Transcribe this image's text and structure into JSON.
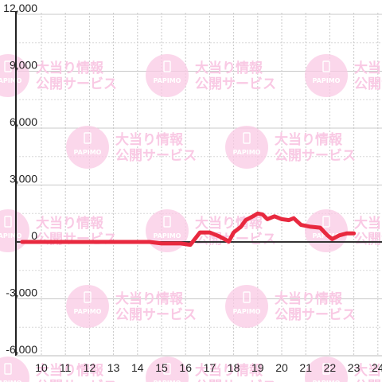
{
  "chart_data": {
    "type": "line",
    "title": "",
    "xlabel": "",
    "ylabel": "",
    "xlim": [
      9.2,
      24.5
    ],
    "ylim": [
      -6000,
      12000
    ],
    "x_ticks": [
      10,
      11,
      12,
      13,
      14,
      15,
      16,
      17,
      18,
      19,
      20,
      21,
      22,
      23,
      24
    ],
    "y_ticks": [
      {
        "value": 12000,
        "label": "12,000"
      },
      {
        "value": 9000,
        "label": "9,000"
      },
      {
        "value": 6000,
        "label": "6,000"
      },
      {
        "value": 3000,
        "label": "3,000"
      },
      {
        "value": 0,
        "label": "0"
      },
      {
        "value": -3000,
        "label": "-3,000"
      },
      {
        "value": -6000,
        "label": "-6,000"
      }
    ],
    "grid": true,
    "series": [
      {
        "color": "#e8293f",
        "points": [
          [
            9.2,
            0
          ],
          [
            14.5,
            0
          ],
          [
            15.0,
            -80
          ],
          [
            15.8,
            -80
          ],
          [
            16.2,
            -150
          ],
          [
            16.6,
            500
          ],
          [
            17.0,
            500
          ],
          [
            17.4,
            300
          ],
          [
            17.8,
            20
          ],
          [
            18.0,
            500
          ],
          [
            18.3,
            800
          ],
          [
            18.5,
            1150
          ],
          [
            18.8,
            1350
          ],
          [
            19.0,
            1500
          ],
          [
            19.2,
            1450
          ],
          [
            19.4,
            1200
          ],
          [
            19.7,
            1350
          ],
          [
            20.0,
            1200
          ],
          [
            20.3,
            1150
          ],
          [
            20.5,
            1250
          ],
          [
            20.8,
            900
          ],
          [
            21.2,
            800
          ],
          [
            21.6,
            750
          ],
          [
            21.9,
            350
          ],
          [
            22.1,
            150
          ],
          [
            22.4,
            350
          ],
          [
            22.7,
            450
          ],
          [
            23.0,
            450
          ]
        ]
      }
    ]
  },
  "watermark": {
    "badge_text": "PAPIMO",
    "line1": "大当り情報",
    "line2": "公開サービス",
    "color": "#f9c9e4"
  }
}
